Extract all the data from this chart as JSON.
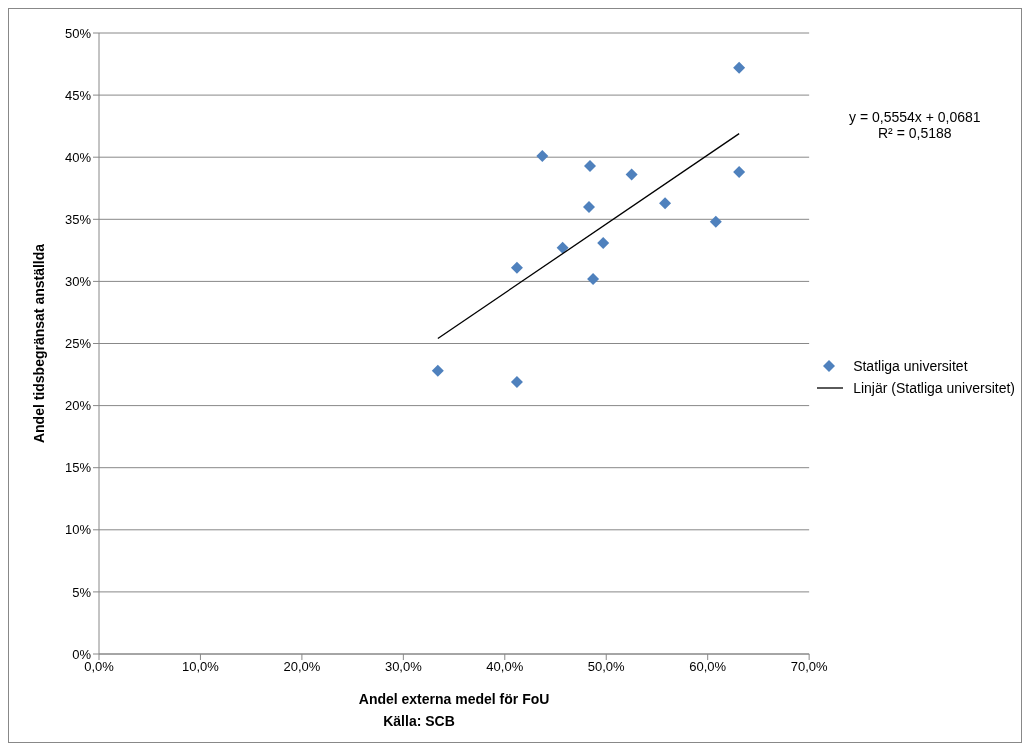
{
  "chart_data": {
    "type": "scatter",
    "xlabel": "Andel externa medel för FoU",
    "ylabel": "Andel tidsbegränsat anställda",
    "annotations": [
      "y = 0,5554x + 0,0681\nR² = 0,5188",
      "Källa: SCB"
    ],
    "series": [
      {
        "name": "Statliga universitet",
        "marker": "diamond",
        "color": "#4f81bd",
        "x": [
          33.4,
          41.2,
          41.2,
          43.7,
          45.7,
          48.3,
          48.4,
          48.7,
          49.7,
          52.5,
          55.8,
          60.8,
          63.1,
          63.1
        ],
        "values": [
          22.8,
          21.9,
          31.1,
          40.1,
          32.7,
          36.0,
          39.3,
          30.2,
          33.1,
          38.6,
          36.3,
          34.8,
          47.2,
          38.8
        ]
      },
      {
        "name": "Linjär (Statliga universitet)",
        "type": "line",
        "marker": "none",
        "color": "#000000",
        "x": [
          33.4,
          63.1
        ],
        "values": [
          25.4,
          41.9
        ]
      }
    ],
    "line_style": "solid",
    "grid": "y",
    "legend": "right",
    "xlim": [
      0,
      70
    ],
    "xticks": [
      {
        "value": 0,
        "label": "0,0%"
      },
      {
        "value": 10,
        "label": "10,0%"
      },
      {
        "value": 20,
        "label": "20,0%"
      },
      {
        "value": 30,
        "label": "30,0%"
      },
      {
        "value": 40,
        "label": "40,0%"
      },
      {
        "value": 50,
        "label": "50,0%"
      },
      {
        "value": 60,
        "label": "60,0%"
      },
      {
        "value": 70,
        "label": "70,0%"
      }
    ],
    "ylim": [
      0,
      50
    ],
    "yticks": [
      {
        "value": 0,
        "label": "0%"
      },
      {
        "value": 5,
        "label": "5%"
      },
      {
        "value": 10,
        "label": "10%"
      },
      {
        "value": 15,
        "label": "15%"
      },
      {
        "value": 20,
        "label": "20%"
      },
      {
        "value": 25,
        "label": "25%"
      },
      {
        "value": 30,
        "label": "30%"
      },
      {
        "value": 35,
        "label": "35%"
      },
      {
        "value": 40,
        "label": "40%"
      },
      {
        "value": 45,
        "label": "45%"
      },
      {
        "value": 50,
        "label": "50%"
      }
    ]
  }
}
